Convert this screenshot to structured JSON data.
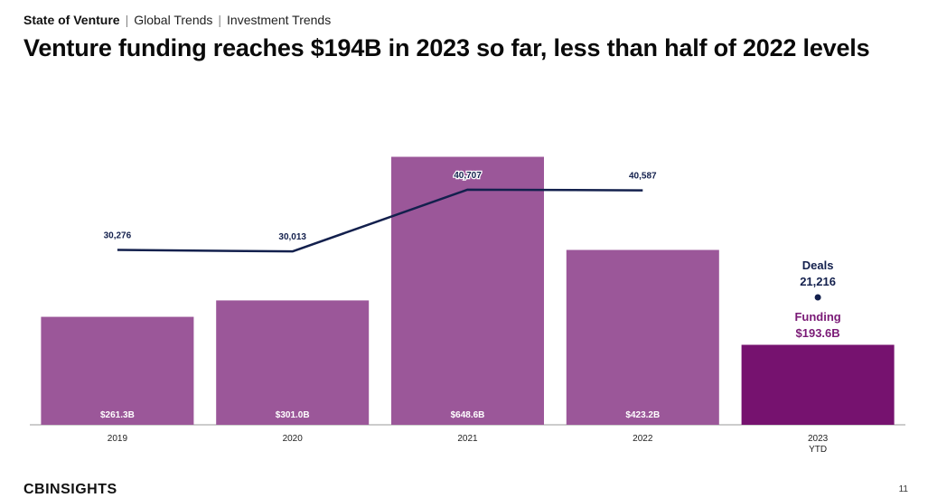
{
  "header": {
    "breadcrumb": [
      "State of Venture",
      "Global Trends",
      "Investment Trends"
    ],
    "title": "Venture funding reaches $194B in 2023 so far, less than half of 2022 levels"
  },
  "chart_data": {
    "type": "bar",
    "categories": [
      "2019",
      "2020",
      "2021",
      "2022",
      "2023"
    ],
    "category_sublabels": [
      "",
      "",
      "",
      "",
      "YTD"
    ],
    "series": [
      {
        "values": [
          261.3,
          301.0,
          648.6,
          423.2,
          193.6
        ],
        "labels": [
          "$261.3B",
          "$301.0B",
          "$648.6B",
          "$423.2B",
          "$193.6B"
        ],
        "colors": [
          "#9b5799",
          "#9b5799",
          "#9b5799",
          "#9b5799",
          "#76126f"
        ],
        "axis": "left"
      },
      {
        "type": "line",
        "values": [
          30276,
          30013,
          40707,
          40587,
          21216
        ],
        "labels": [
          "30,276",
          "30,013",
          "40,707",
          "40,587",
          "21,216"
        ],
        "color": "#13204d",
        "axis": "right"
      }
    ],
    "annotations": {
      "deals_label": "Deals",
      "deals_value": "21,216",
      "funding_label": "Funding",
      "funding_value": "$193.6B"
    },
    "ylim_left": [
      0,
      700
    ],
    "ylim_right": [
      0,
      46000
    ],
    "grid": false,
    "legend": "none"
  },
  "footer": {
    "logo": "CBINSIGHTS",
    "page_number": "11"
  }
}
